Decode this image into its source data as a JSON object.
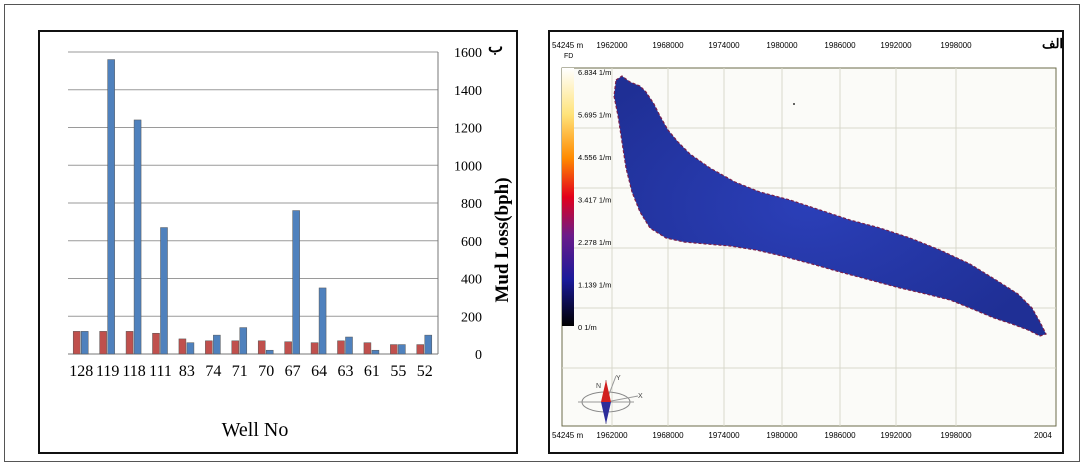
{
  "left_label": "ب",
  "right_label": "الف",
  "chart_data": {
    "type": "bar",
    "categories": [
      "128",
      "119",
      "118",
      "111",
      "83",
      "74",
      "71",
      "70",
      "67",
      "64",
      "63",
      "61",
      "55",
      "52"
    ],
    "series": [
      {
        "values": [
          120,
          120,
          120,
          110,
          80,
          70,
          70,
          70,
          65,
          60,
          70,
          60,
          50,
          50
        ],
        "color": "#c0504d"
      },
      {
        "values": [
          120,
          1560,
          1240,
          670,
          60,
          100,
          140,
          20,
          760,
          350,
          90,
          20,
          50,
          100
        ],
        "color": "#4f81bd"
      }
    ],
    "xlabel": "Well No",
    "ylabel": "Mud Loss(bph)",
    "ylim": [
      0,
      1600
    ],
    "yticks": [
      "0",
      "200",
      "400",
      "600",
      "800",
      "1000",
      "1200",
      "1400",
      "1600"
    ],
    "grid": true
  },
  "map": {
    "x_ticks": [
      "1962000",
      "1968000",
      "1974000",
      "1980000",
      "1986000",
      "1992000",
      "1998000"
    ],
    "top_left_label": "54245 m",
    "bottom_left_label": "54245 m",
    "bottom_right_label": "2004",
    "colorbar_title": "FD",
    "colorbar_ticks": [
      "6.834 1/m",
      "5.695 1/m",
      "4.556 1/m",
      "3.417 1/m",
      "2.278 1/m",
      "1.139 1/m",
      "0 1/m"
    ],
    "compass_labels": {
      "n": "N",
      "y": "Y",
      "x": "X"
    }
  }
}
